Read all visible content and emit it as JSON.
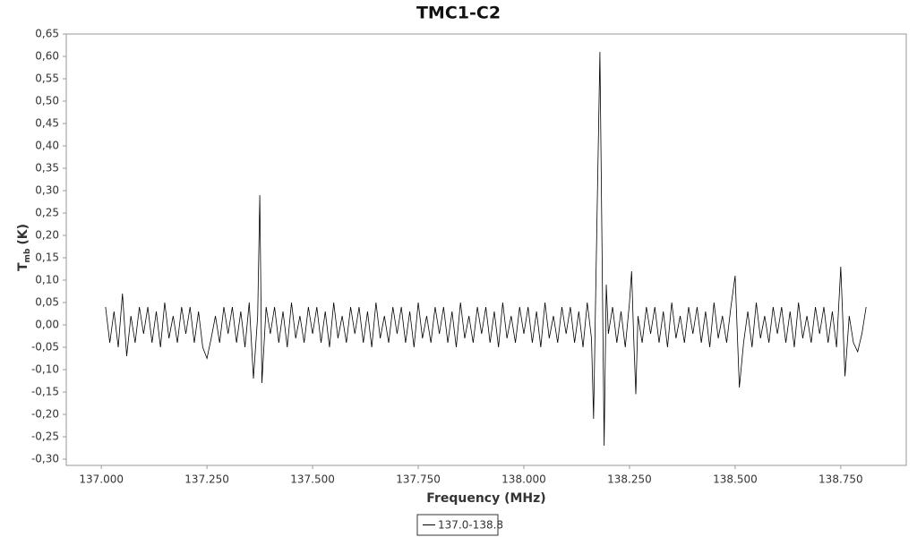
{
  "chart_data": {
    "type": "line",
    "title": "TMC1-C2",
    "x_label": "Frequency (MHz)",
    "y_label": "T",
    "y_label_sub": "mb",
    "y_label_unit": "(K)",
    "xlim": [
      136.917,
      138.905
    ],
    "ylim": [
      -0.314,
      0.65
    ],
    "xticks": [
      {
        "value": 137,
        "label": "137.000"
      },
      {
        "value": 137.25,
        "label": "137.250"
      },
      {
        "value": 137.5,
        "label": "137.500"
      },
      {
        "value": 137.75,
        "label": "137.750"
      },
      {
        "value": 138,
        "label": "138.000"
      },
      {
        "value": 138.25,
        "label": "138.250"
      },
      {
        "value": 138.5,
        "label": "138.500"
      },
      {
        "value": 138.75,
        "label": "138.750"
      }
    ],
    "yticks": [
      {
        "value": 0.65,
        "label": "0,65"
      },
      {
        "value": 0.6,
        "label": "0,60"
      },
      {
        "value": 0.55,
        "label": "0,55"
      },
      {
        "value": 0.5,
        "label": "0,50"
      },
      {
        "value": 0.45,
        "label": "0,45"
      },
      {
        "value": 0.4,
        "label": "0,40"
      },
      {
        "value": 0.35,
        "label": "0,35"
      },
      {
        "value": 0.3,
        "label": "0,30"
      },
      {
        "value": 0.25,
        "label": "0,25"
      },
      {
        "value": 0.2,
        "label": "0,20"
      },
      {
        "value": 0.15,
        "label": "0,15"
      },
      {
        "value": 0.1,
        "label": "0,10"
      },
      {
        "value": 0.05,
        "label": "0,05"
      },
      {
        "value": 0,
        "label": "0,00"
      },
      {
        "value": -0.05,
        "label": "-0,05"
      },
      {
        "value": -0.1,
        "label": "-0,10"
      },
      {
        "value": -0.15,
        "label": "-0,15"
      },
      {
        "value": -0.2,
        "label": "-0,20"
      },
      {
        "value": -0.25,
        "label": "-0,25"
      },
      {
        "value": -0.3,
        "label": "-0,30"
      }
    ],
    "x": [
      137.01,
      137.02,
      137.03,
      137.04,
      137.05,
      137.06,
      137.07,
      137.08,
      137.09,
      137.1,
      137.11,
      137.12,
      137.13,
      137.14,
      137.15,
      137.16,
      137.17,
      137.18,
      137.19,
      137.2,
      137.21,
      137.22,
      137.23,
      137.24,
      137.25,
      137.26,
      137.27,
      137.28,
      137.29,
      137.3,
      137.31,
      137.32,
      137.33,
      137.34,
      137.35,
      137.36,
      137.37,
      137.375,
      137.38,
      137.39,
      137.4,
      137.41,
      137.42,
      137.43,
      137.44,
      137.45,
      137.46,
      137.47,
      137.48,
      137.49,
      137.5,
      137.51,
      137.52,
      137.53,
      137.54,
      137.55,
      137.56,
      137.57,
      137.58,
      137.59,
      137.6,
      137.61,
      137.62,
      137.63,
      137.64,
      137.65,
      137.66,
      137.67,
      137.68,
      137.69,
      137.7,
      137.71,
      137.72,
      137.73,
      137.74,
      137.75,
      137.76,
      137.77,
      137.78,
      137.79,
      137.8,
      137.81,
      137.82,
      137.83,
      137.84,
      137.85,
      137.86,
      137.87,
      137.88,
      137.89,
      137.9,
      137.91,
      137.92,
      137.93,
      137.94,
      137.95,
      137.96,
      137.97,
      137.98,
      137.99,
      138,
      138.01,
      138.02,
      138.03,
      138.04,
      138.05,
      138.06,
      138.07,
      138.08,
      138.09,
      138.1,
      138.11,
      138.12,
      138.13,
      138.14,
      138.15,
      138.16,
      138.165,
      138.17,
      138.18,
      138.19,
      138.195,
      138.2,
      138.21,
      138.22,
      138.23,
      138.24,
      138.25,
      138.255,
      138.26,
      138.265,
      138.27,
      138.28,
      138.29,
      138.3,
      138.31,
      138.32,
      138.33,
      138.34,
      138.35,
      138.36,
      138.37,
      138.38,
      138.39,
      138.4,
      138.41,
      138.42,
      138.43,
      138.44,
      138.45,
      138.46,
      138.47,
      138.48,
      138.49,
      138.5,
      138.51,
      138.52,
      138.53,
      138.54,
      138.55,
      138.56,
      138.57,
      138.58,
      138.59,
      138.6,
      138.61,
      138.62,
      138.63,
      138.64,
      138.65,
      138.66,
      138.67,
      138.68,
      138.69,
      138.7,
      138.71,
      138.72,
      138.73,
      138.74,
      138.75,
      138.76,
      138.77,
      138.78,
      138.79,
      138.8,
      138.81
    ],
    "series": [
      {
        "name": "137.0-138.8",
        "color": "#000000",
        "values": [
          0.04,
          -0.04,
          0.03,
          -0.05,
          0.07,
          -0.07,
          0.02,
          -0.04,
          0.04,
          -0.02,
          0.04,
          -0.04,
          0.03,
          -0.05,
          0.05,
          -0.03,
          0.02,
          -0.04,
          0.04,
          -0.02,
          0.04,
          -0.04,
          0.03,
          -0.05,
          -0.075,
          -0.03,
          0.02,
          -0.04,
          0.04,
          -0.02,
          0.04,
          -0.04,
          0.03,
          -0.05,
          0.05,
          -0.12,
          0.02,
          0.29,
          -0.13,
          0.04,
          -0.02,
          0.04,
          -0.04,
          0.03,
          -0.05,
          0.05,
          -0.03,
          0.02,
          -0.04,
          0.04,
          -0.02,
          0.04,
          -0.04,
          0.03,
          -0.05,
          0.05,
          -0.03,
          0.02,
          -0.04,
          0.04,
          -0.02,
          0.04,
          -0.04,
          0.03,
          -0.05,
          0.05,
          -0.03,
          0.02,
          -0.04,
          0.04,
          -0.02,
          0.04,
          -0.04,
          0.03,
          -0.05,
          0.05,
          -0.03,
          0.02,
          -0.04,
          0.04,
          -0.02,
          0.04,
          -0.04,
          0.03,
          -0.05,
          0.05,
          -0.03,
          0.02,
          -0.04,
          0.04,
          -0.02,
          0.04,
          -0.04,
          0.03,
          -0.05,
          0.05,
          -0.03,
          0.02,
          -0.04,
          0.04,
          -0.02,
          0.04,
          -0.04,
          0.03,
          -0.05,
          0.05,
          -0.03,
          0.02,
          -0.04,
          0.04,
          -0.02,
          0.04,
          -0.04,
          0.03,
          -0.05,
          0.05,
          -0.03,
          -0.21,
          0.07,
          0.61,
          -0.27,
          0.09,
          -0.02,
          0.04,
          -0.04,
          0.03,
          -0.05,
          0.05,
          0.12,
          -0.03,
          -0.155,
          0.02,
          -0.04,
          0.04,
          -0.02,
          0.04,
          -0.04,
          0.03,
          -0.05,
          0.05,
          -0.03,
          0.02,
          -0.04,
          0.04,
          -0.02,
          0.04,
          -0.04,
          0.03,
          -0.05,
          0.05,
          -0.03,
          0.02,
          -0.04,
          0.04,
          0.11,
          -0.14,
          -0.04,
          0.03,
          -0.05,
          0.05,
          -0.03,
          0.02,
          -0.04,
          0.04,
          -0.02,
          0.04,
          -0.04,
          0.03,
          -0.05,
          0.05,
          -0.03,
          0.02,
          -0.04,
          0.04,
          -0.02,
          0.04,
          -0.04,
          0.03,
          -0.05,
          0.13,
          -0.115,
          0.02,
          -0.04,
          -0.06,
          -0.02,
          0.04
        ]
      }
    ]
  }
}
